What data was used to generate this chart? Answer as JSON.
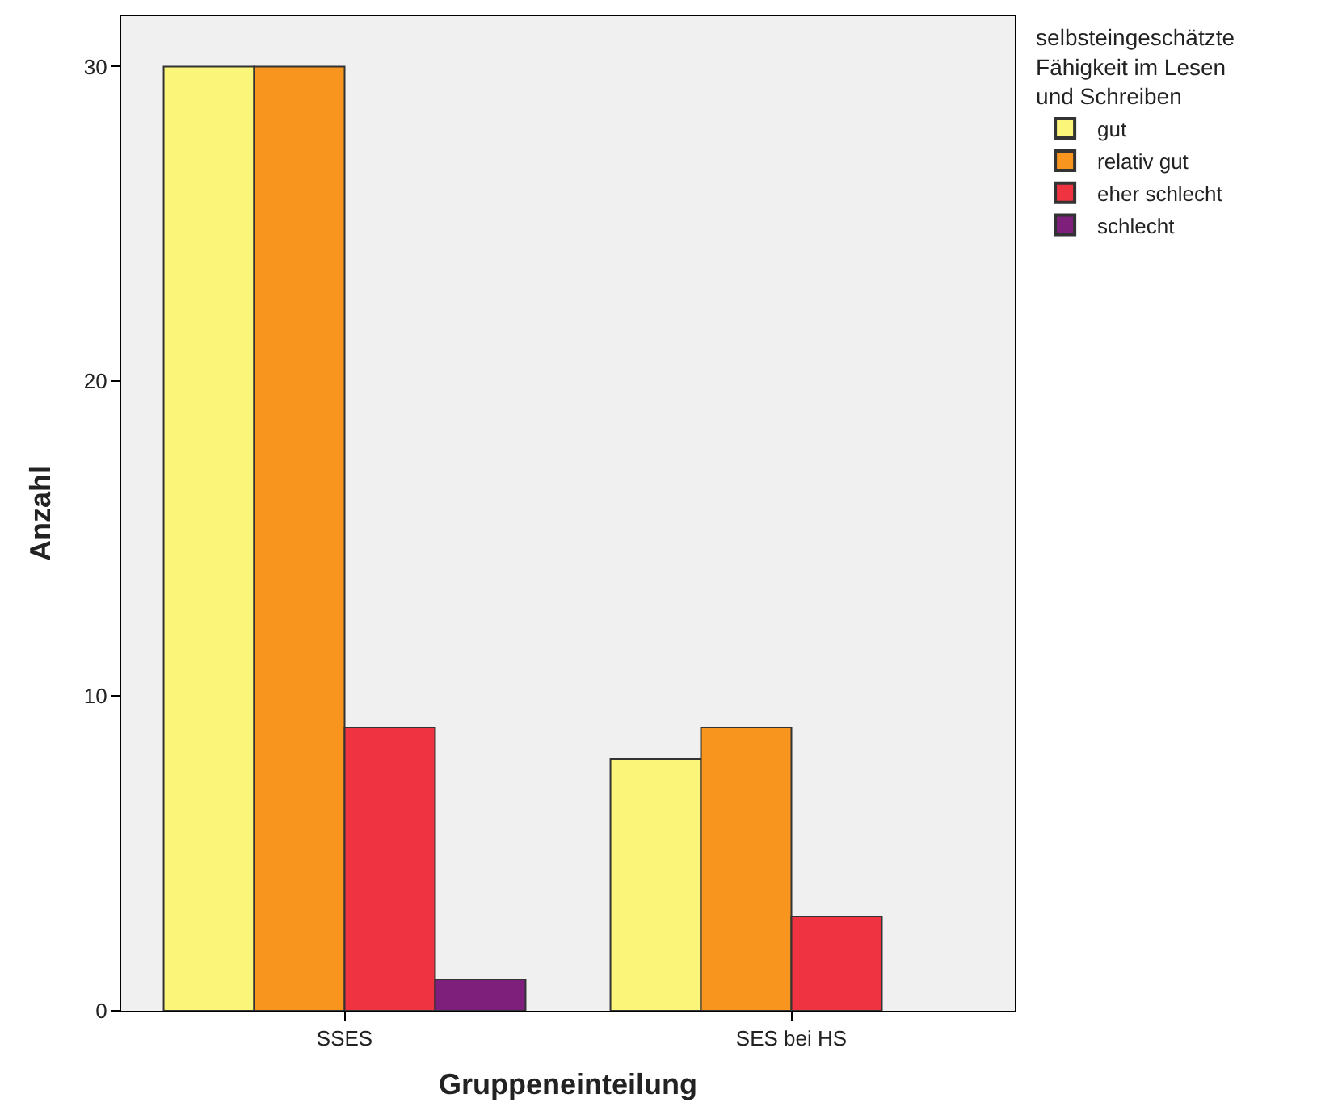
{
  "chart_data": {
    "type": "bar",
    "xlabel": "Gruppeneinteilung",
    "ylabel": "Anzahl",
    "legend_title": "selbsteingeschätzte Fähigkeit im Lesen und Schreiben",
    "categories": [
      "SSES",
      "SES bei HS"
    ],
    "series": [
      {
        "name": "gut",
        "color": "#fbf67a",
        "values": [
          30,
          8
        ]
      },
      {
        "name": "relativ gut",
        "color": "#f7951e",
        "values": [
          30,
          9
        ]
      },
      {
        "name": "eher schlecht",
        "color": "#ef3340",
        "values": [
          9,
          3
        ]
      },
      {
        "name": "schlecht",
        "color": "#7d1f7b",
        "values": [
          1,
          null
        ]
      }
    ],
    "ylim": [
      0,
      31.6
    ],
    "yticks": [
      0,
      10,
      20,
      30
    ],
    "grid": false,
    "legend": "top right"
  }
}
